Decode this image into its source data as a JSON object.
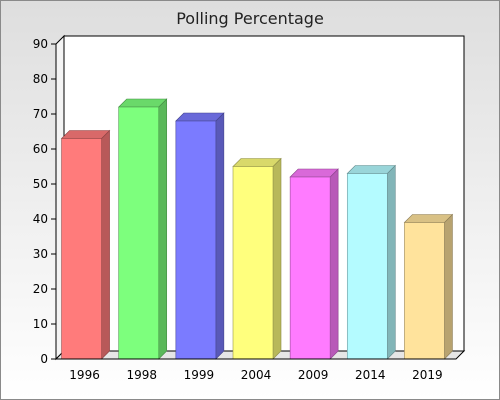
{
  "chart_data": {
    "type": "bar",
    "title": "Polling Percentage",
    "xlabel": "",
    "ylabel": "",
    "categories": [
      "1996",
      "1998",
      "1999",
      "2004",
      "2009",
      "2014",
      "2019"
    ],
    "values": [
      63,
      72,
      68,
      55,
      52,
      53,
      39
    ],
    "colors": [
      "#ff7b7b",
      "#7dff7d",
      "#7b7bff",
      "#ffff7d",
      "#ff7bff",
      "#b4fbff",
      "#ffe39c"
    ],
    "ylim": [
      0,
      90
    ],
    "yticks": [
      0,
      10,
      20,
      30,
      40,
      50,
      60,
      70,
      80,
      90
    ],
    "bar_style": "3d",
    "grid": false,
    "legend": "none"
  }
}
